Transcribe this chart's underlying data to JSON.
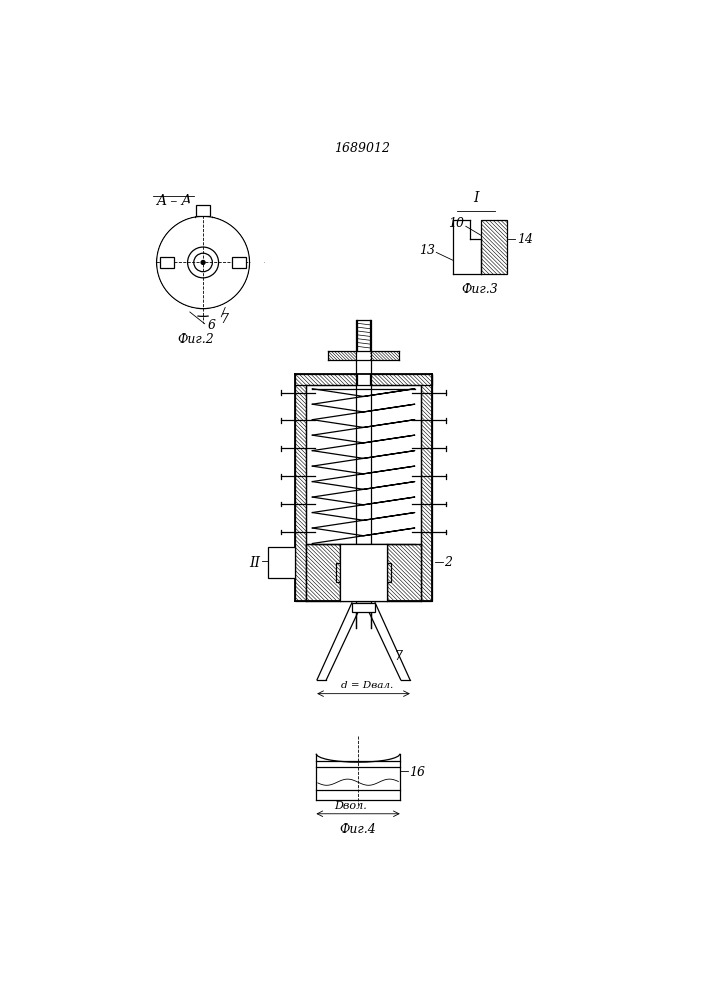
{
  "title": "1689012",
  "bg_color": "#ffffff",
  "line_color": "#000000",
  "fig2_label": "Фиг.2",
  "fig3_label": "Фиг.3",
  "fig4_label": "Фиг.4",
  "section_label": "A – A",
  "label_I": "I",
  "label_II": "II",
  "label_6": "6",
  "label_7": "7",
  "label_2": "2",
  "label_10": "10",
  "label_13": "13",
  "label_14": "14",
  "label_16": "16",
  "label_d": "d = Dвал.",
  "label_Dvol": "Dвол."
}
